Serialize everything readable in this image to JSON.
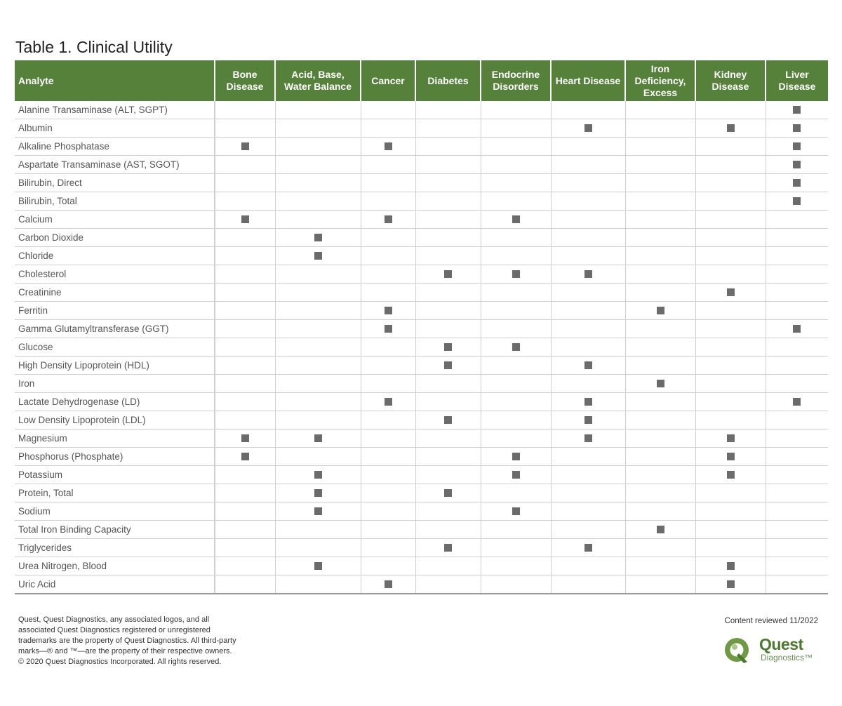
{
  "title": "Table 1. Clinical Utility",
  "columns": [
    "Analyte",
    "Bone Disease",
    "Acid, Base, Water Balance",
    "Cancer",
    "Diabetes",
    "Endocrine Disorders",
    "Heart Disease",
    "Iron Deficiency, Excess",
    "Kidney Disease",
    "Liver Disease"
  ],
  "rows": [
    {
      "name": "Alanine Transaminase (ALT, SGPT)",
      "marks": [
        0,
        0,
        0,
        0,
        0,
        0,
        0,
        0,
        1
      ]
    },
    {
      "name": "Albumin",
      "marks": [
        0,
        0,
        0,
        0,
        0,
        1,
        0,
        1,
        1
      ]
    },
    {
      "name": "Alkaline Phosphatase",
      "marks": [
        1,
        0,
        1,
        0,
        0,
        0,
        0,
        0,
        1
      ]
    },
    {
      "name": "Aspartate Transaminase (AST, SGOT)",
      "marks": [
        0,
        0,
        0,
        0,
        0,
        0,
        0,
        0,
        1
      ]
    },
    {
      "name": "Bilirubin, Direct",
      "marks": [
        0,
        0,
        0,
        0,
        0,
        0,
        0,
        0,
        1
      ]
    },
    {
      "name": "Bilirubin, Total",
      "marks": [
        0,
        0,
        0,
        0,
        0,
        0,
        0,
        0,
        1
      ]
    },
    {
      "name": "Calcium",
      "marks": [
        1,
        0,
        1,
        0,
        1,
        0,
        0,
        0,
        0
      ]
    },
    {
      "name": "Carbon Dioxide",
      "marks": [
        0,
        1,
        0,
        0,
        0,
        0,
        0,
        0,
        0
      ]
    },
    {
      "name": "Chloride",
      "marks": [
        0,
        1,
        0,
        0,
        0,
        0,
        0,
        0,
        0
      ]
    },
    {
      "name": "Cholesterol",
      "marks": [
        0,
        0,
        0,
        1,
        1,
        1,
        0,
        0,
        0
      ]
    },
    {
      "name": "Creatinine",
      "marks": [
        0,
        0,
        0,
        0,
        0,
        0,
        0,
        1,
        0
      ]
    },
    {
      "name": "Ferritin",
      "marks": [
        0,
        0,
        1,
        0,
        0,
        0,
        1,
        0,
        0
      ]
    },
    {
      "name": "Gamma Glutamyltransferase (GGT)",
      "marks": [
        0,
        0,
        1,
        0,
        0,
        0,
        0,
        0,
        1
      ]
    },
    {
      "name": "Glucose",
      "marks": [
        0,
        0,
        0,
        1,
        1,
        0,
        0,
        0,
        0
      ]
    },
    {
      "name": "High Density Lipoprotein (HDL)",
      "marks": [
        0,
        0,
        0,
        1,
        0,
        1,
        0,
        0,
        0
      ]
    },
    {
      "name": "Iron",
      "marks": [
        0,
        0,
        0,
        0,
        0,
        0,
        1,
        0,
        0
      ]
    },
    {
      "name": "Lactate Dehydrogenase (LD)",
      "marks": [
        0,
        0,
        1,
        0,
        0,
        1,
        0,
        0,
        1
      ]
    },
    {
      "name": "Low Density Lipoprotein (LDL)",
      "marks": [
        0,
        0,
        0,
        1,
        0,
        1,
        0,
        0,
        0
      ]
    },
    {
      "name": "Magnesium",
      "marks": [
        1,
        1,
        0,
        0,
        0,
        1,
        0,
        1,
        0
      ]
    },
    {
      "name": "Phosphorus (Phosphate)",
      "marks": [
        1,
        0,
        0,
        0,
        1,
        0,
        0,
        1,
        0
      ]
    },
    {
      "name": "Potassium",
      "marks": [
        0,
        1,
        0,
        0,
        1,
        0,
        0,
        1,
        0
      ]
    },
    {
      "name": "Protein, Total",
      "marks": [
        0,
        1,
        0,
        1,
        0,
        0,
        0,
        0,
        0
      ]
    },
    {
      "name": "Sodium",
      "marks": [
        0,
        1,
        0,
        0,
        1,
        0,
        0,
        0,
        0
      ]
    },
    {
      "name": "Total Iron Binding Capacity",
      "marks": [
        0,
        0,
        0,
        0,
        0,
        0,
        1,
        0,
        0
      ]
    },
    {
      "name": "Triglycerides",
      "marks": [
        0,
        0,
        0,
        1,
        0,
        1,
        0,
        0,
        0
      ]
    },
    {
      "name": "Urea Nitrogen, Blood",
      "marks": [
        0,
        1,
        0,
        0,
        0,
        0,
        0,
        1,
        0
      ]
    },
    {
      "name": "Uric Acid",
      "marks": [
        0,
        0,
        1,
        0,
        0,
        0,
        0,
        1,
        0
      ]
    }
  ],
  "footer": {
    "lines": [
      "Quest, Quest Diagnostics, any associated logos, and all",
      "associated Quest Diagnostics registered or unregistered",
      "trademarks are the property of Quest Diagnostics. All third-party",
      "marks—® and ™—are the property of their respective owners.",
      "© 2020 Quest Diagnostics Incorporated. All rights reserved."
    ],
    "reviewed": "Content reviewed 11/2022"
  },
  "logo": {
    "brand": "Quest",
    "sub": "Diagnostics™"
  },
  "colors": {
    "header_green": "#55813a",
    "mark_gray": "#6b6b6b",
    "logo_green": "#4a7a2c"
  }
}
